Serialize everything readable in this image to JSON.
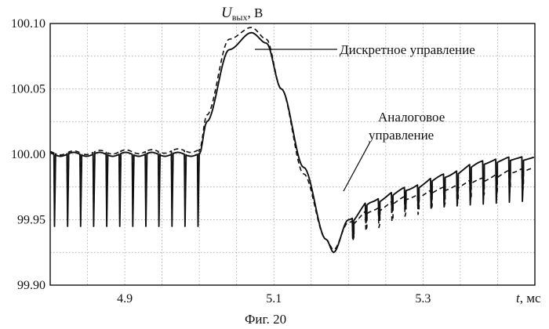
{
  "chart_data": {
    "type": "line",
    "title": "",
    "caption": "Фиг. 20",
    "ylabel_main": "U",
    "ylabel_sub": "вых",
    "ylabel_unit": ", В",
    "xlabel_var": "t",
    "xlabel_unit": ", мс",
    "xlim": [
      4.8,
      5.45
    ],
    "ylim": [
      99.9,
      100.1
    ],
    "x_ticks": [
      4.9,
      5.1,
      5.3
    ],
    "x_tick_labels": [
      "4.9",
      "5.1",
      "5.3"
    ],
    "y_ticks": [
      99.9,
      99.95,
      100.0,
      100.05,
      100.1
    ],
    "y_tick_labels": [
      "99.90",
      "99.95",
      "100.00",
      "100.05",
      "100.10"
    ],
    "x_gridlines": [
      4.8,
      4.85,
      4.9,
      4.95,
      5.0,
      5.05,
      5.1,
      5.15,
      5.2,
      5.25,
      5.3,
      5.35,
      5.4,
      5.45
    ],
    "y_gridlines": [
      99.9,
      99.925,
      99.95,
      99.975,
      100.0,
      100.025,
      100.05,
      100.075,
      100.1
    ],
    "grid": true,
    "annotations": [
      {
        "text": "Дискретное управление",
        "series": "Дискретное управление",
        "target": [
          5.07,
          100.093
        ]
      },
      {
        "line1": "Аналоговое",
        "line2": "управление",
        "series": "Аналоговое управление",
        "target": [
          5.225,
          99.965
        ]
      }
    ],
    "series": [
      {
        "name": "Дискретное управление",
        "style": "solid",
        "x": [
          4.8,
          4.925,
          5.0,
          5.01,
          5.04,
          5.07,
          5.09,
          5.11,
          5.14,
          5.17,
          5.18,
          5.2,
          5.23,
          5.28,
          5.33,
          5.38,
          5.42,
          5.445
        ],
        "y": [
          100.0,
          100.0,
          100.0,
          100.025,
          100.08,
          100.093,
          100.085,
          100.05,
          99.99,
          99.935,
          99.925,
          99.95,
          99.965,
          99.975,
          99.985,
          99.995,
          99.998,
          99.998
        ],
        "spikes": {
          "start": 4.805,
          "end": 5.0,
          "period": 0.0175,
          "depth": 99.945,
          "first_after_gap": 5.205,
          "late_depth": 99.965
        }
      },
      {
        "name": "Аналоговое управление",
        "style": "dashed",
        "x": [
          4.8,
          4.925,
          5.0,
          5.01,
          5.04,
          5.07,
          5.09,
          5.11,
          5.14,
          5.17,
          5.18,
          5.2,
          5.23,
          5.28,
          5.33,
          5.38,
          5.42,
          5.445
        ],
        "y": [
          100.001,
          100.002,
          100.003,
          100.03,
          100.088,
          100.097,
          100.088,
          100.05,
          99.985,
          99.935,
          99.927,
          99.948,
          99.958,
          99.968,
          99.975,
          99.982,
          99.988,
          99.99
        ],
        "spikes": {
          "start": 4.805,
          "end": 5.0,
          "period": 0.0175,
          "depth": 99.95,
          "first_after_gap": 5.205,
          "late_depth": 99.97
        }
      }
    ]
  }
}
